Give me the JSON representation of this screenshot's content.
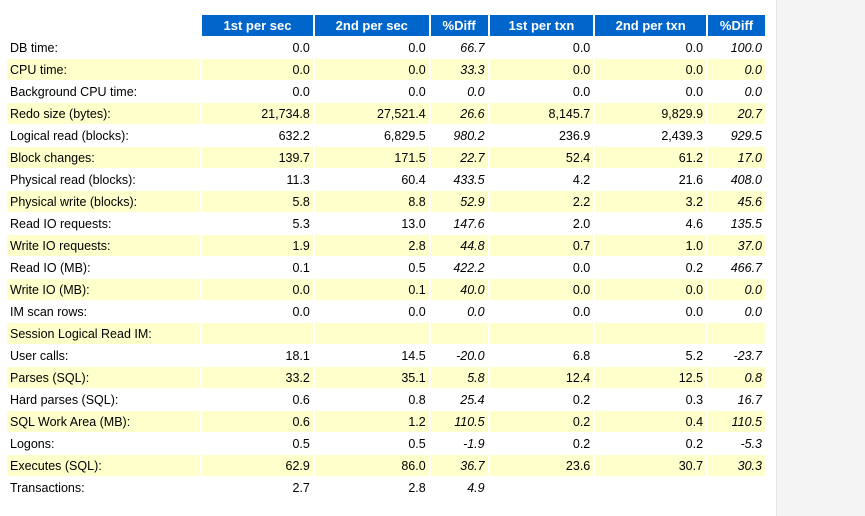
{
  "table": {
    "header": [
      "1st per sec",
      "2nd per sec",
      "%Diff",
      "1st per txn",
      "2nd per txn",
      "%Diff"
    ],
    "rows": [
      {
        "label": "DB time:",
        "cells": [
          "0.0",
          "0.0",
          "66.7",
          "0.0",
          "0.0",
          "100.0"
        ]
      },
      {
        "label": "CPU time:",
        "cells": [
          "0.0",
          "0.0",
          "33.3",
          "0.0",
          "0.0",
          "0.0"
        ]
      },
      {
        "label": "Background CPU time:",
        "cells": [
          "0.0",
          "0.0",
          "0.0",
          "0.0",
          "0.0",
          "0.0"
        ]
      },
      {
        "label": "Redo size (bytes):",
        "cells": [
          "21,734.8",
          "27,521.4",
          "26.6",
          "8,145.7",
          "9,829.9",
          "20.7"
        ]
      },
      {
        "label": "Logical read (blocks):",
        "cells": [
          "632.2",
          "6,829.5",
          "980.2",
          "236.9",
          "2,439.3",
          "929.5"
        ]
      },
      {
        "label": "Block changes:",
        "cells": [
          "139.7",
          "171.5",
          "22.7",
          "52.4",
          "61.2",
          "17.0"
        ]
      },
      {
        "label": "Physical read (blocks):",
        "cells": [
          "11.3",
          "60.4",
          "433.5",
          "4.2",
          "21.6",
          "408.0"
        ]
      },
      {
        "label": "Physical write (blocks):",
        "cells": [
          "5.8",
          "8.8",
          "52.9",
          "2.2",
          "3.2",
          "45.6"
        ]
      },
      {
        "label": "Read IO requests:",
        "cells": [
          "5.3",
          "13.0",
          "147.6",
          "2.0",
          "4.6",
          "135.5"
        ]
      },
      {
        "label": "Write IO requests:",
        "cells": [
          "1.9",
          "2.8",
          "44.8",
          "0.7",
          "1.0",
          "37.0"
        ]
      },
      {
        "label": "Read IO (MB):",
        "cells": [
          "0.1",
          "0.5",
          "422.2",
          "0.0",
          "0.2",
          "466.7"
        ]
      },
      {
        "label": "Write IO (MB):",
        "cells": [
          "0.0",
          "0.1",
          "40.0",
          "0.0",
          "0.0",
          "0.0"
        ]
      },
      {
        "label": "IM scan rows:",
        "cells": [
          "0.0",
          "0.0",
          "0.0",
          "0.0",
          "0.0",
          "0.0"
        ]
      },
      {
        "label": "Session Logical Read IM:",
        "cells": [
          null,
          null,
          null,
          null,
          null,
          null
        ]
      },
      {
        "label": "User calls:",
        "cells": [
          "18.1",
          "14.5",
          "-20.0",
          "6.8",
          "5.2",
          "-23.7"
        ]
      },
      {
        "label": "Parses (SQL):",
        "cells": [
          "33.2",
          "35.1",
          "5.8",
          "12.4",
          "12.5",
          "0.8"
        ]
      },
      {
        "label": "Hard parses (SQL):",
        "cells": [
          "0.6",
          "0.8",
          "25.4",
          "0.2",
          "0.3",
          "16.7"
        ]
      },
      {
        "label": "SQL Work Area (MB):",
        "cells": [
          "0.6",
          "1.2",
          "110.5",
          "0.2",
          "0.4",
          "110.5"
        ]
      },
      {
        "label": "Logons:",
        "cells": [
          "0.5",
          "0.5",
          "-1.9",
          "0.2",
          "0.2",
          "-5.3"
        ]
      },
      {
        "label": "Executes (SQL):",
        "cells": [
          "62.9",
          "86.0",
          "36.7",
          "23.6",
          "30.7",
          "30.3"
        ]
      },
      {
        "label": "Transactions:",
        "cells": [
          "2.7",
          "2.8",
          "4.9",
          null,
          null,
          null
        ]
      }
    ]
  }
}
